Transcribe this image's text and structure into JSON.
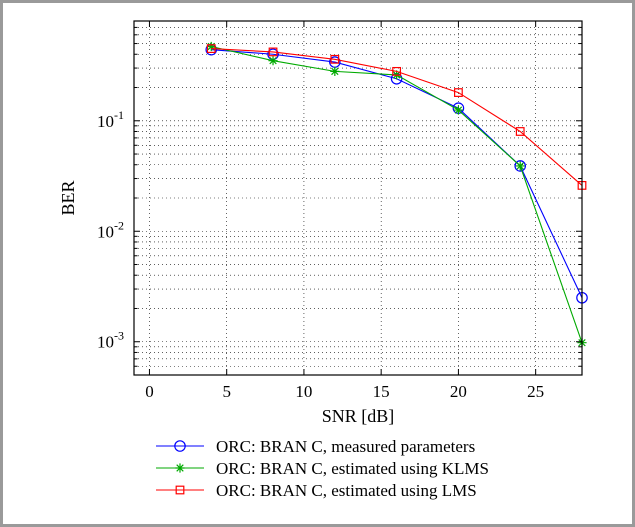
{
  "chart_data": {
    "type": "line",
    "xlabel": "SNR [dB]",
    "ylabel": "BER",
    "xlim": [
      -1,
      28
    ],
    "ylim": [
      0.0005,
      0.8
    ],
    "y_scale": "log",
    "grid": true,
    "legend_position": "bottom",
    "x_ticks": [
      0,
      5,
      10,
      15,
      20,
      25
    ],
    "y_ticks": [
      {
        "value": 0.1,
        "base": "10",
        "exp": "-1"
      },
      {
        "value": 0.01,
        "base": "10",
        "exp": "-2"
      },
      {
        "value": 0.001,
        "base": "10",
        "exp": "-3"
      }
    ],
    "x": [
      4,
      8,
      12,
      16,
      20,
      24,
      28
    ],
    "series": [
      {
        "name": "ORC: BRAN C, measured parameters",
        "color": "#0000ff",
        "marker": "circle",
        "values": [
          0.44,
          0.4,
          0.34,
          0.24,
          0.13,
          0.039,
          0.0025
        ]
      },
      {
        "name": "ORC: BRAN C, estimated using KLMS",
        "color": "#00aa00",
        "marker": "star",
        "values": [
          0.47,
          0.35,
          0.28,
          0.26,
          0.125,
          0.039,
          0.00098
        ]
      },
      {
        "name": "ORC: BRAN C, estimated using LMS",
        "color": "#ff0000",
        "marker": "square",
        "values": [
          0.45,
          0.42,
          0.36,
          0.28,
          0.18,
          0.08,
          0.026
        ]
      }
    ]
  }
}
